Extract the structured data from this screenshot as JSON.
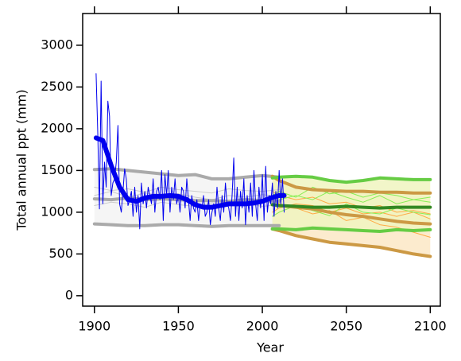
{
  "chart_data": {
    "type": "line",
    "xlabel": "Year",
    "ylabel": "Total annual ppt (mm)",
    "xlim": [
      1893,
      2106
    ],
    "ylim": [
      -125,
      3380
    ],
    "xticks": [
      1900,
      1950,
      2000,
      2050,
      2100
    ],
    "yticks": [
      0,
      500,
      1000,
      1500,
      2000,
      2500,
      3000
    ],
    "ensembles": [
      {
        "color": "#aaaaaa",
        "member_color": "#cccccc",
        "fill": "#f3f3f3",
        "x": [
          1900,
          1910,
          1920,
          1930,
          1940,
          1950,
          1960,
          1970,
          1980,
          1990,
          2000,
          2010
        ],
        "upper": [
          1510,
          1520,
          1500,
          1480,
          1460,
          1440,
          1450,
          1400,
          1400,
          1420,
          1440,
          1420
        ],
        "median": [
          1160,
          1150,
          1170,
          1150,
          1160,
          1150,
          1140,
          1140,
          1130,
          1150,
          1140,
          1130
        ],
        "lower": [
          860,
          850,
          840,
          840,
          850,
          850,
          840,
          830,
          840,
          840,
          840,
          840
        ],
        "members": [
          [
            1200,
            1250,
            1180,
            1230,
            1200,
            1220,
            1180,
            1150,
            1200,
            1180,
            1210,
            1190
          ],
          [
            1080,
            1120,
            1100,
            1060,
            1120,
            1090,
            1070,
            1110,
            1080,
            1100,
            1070,
            1090
          ],
          [
            1300,
            1260,
            1280,
            1240,
            1300,
            1270,
            1250,
            1230,
            1280,
            1260,
            1250,
            1270
          ]
        ]
      },
      {
        "color": "#cc9944",
        "member_color": "#ffaa44",
        "fill": "#fbe8c6",
        "x": [
          2006,
          2010,
          2020,
          2030,
          2040,
          2050,
          2060,
          2070,
          2080,
          2090,
          2100
        ],
        "upper": [
          1430,
          1380,
          1300,
          1270,
          1260,
          1250,
          1250,
          1240,
          1240,
          1230,
          1230
        ],
        "median": [
          1090,
          1080,
          1060,
          1040,
          1000,
          970,
          950,
          920,
          890,
          870,
          860
        ],
        "lower": [
          800,
          780,
          720,
          680,
          640,
          620,
          600,
          580,
          540,
          500,
          470
        ],
        "members": [
          [
            1150,
            1100,
            1050,
            980,
            1020,
            900,
            940,
            850,
            820,
            760,
            700
          ],
          [
            1000,
            1050,
            1100,
            1080,
            1000,
            1050,
            980,
            1000,
            950,
            1000,
            920
          ],
          [
            1250,
            1200,
            1150,
            1180,
            1100,
            1120,
            1050,
            1080,
            1000,
            1020,
            980
          ]
        ]
      },
      {
        "color": "#66cc44",
        "member_color": "#88ee55",
        "fill": "#f0f5c0",
        "x": [
          2006,
          2010,
          2020,
          2030,
          2040,
          2050,
          2060,
          2070,
          2080,
          2090,
          2100
        ],
        "upper": [
          1410,
          1420,
          1430,
          1420,
          1380,
          1360,
          1380,
          1410,
          1400,
          1390,
          1390
        ],
        "median": [
          1090,
          1080,
          1070,
          1060,
          1060,
          1070,
          1060,
          1050,
          1060,
          1060,
          1060
        ],
        "median_color": "#338822",
        "lower": [
          800,
          800,
          790,
          810,
          800,
          790,
          780,
          770,
          790,
          780,
          790
        ],
        "members": [
          [
            1200,
            1250,
            1180,
            1300,
            1220,
            1250,
            1180,
            1230,
            1200,
            1150,
            1180
          ],
          [
            950,
            1000,
            1080,
            1020,
            960,
            1100,
            1000,
            980,
            1050,
            1000,
            970
          ],
          [
            1100,
            1150,
            1200,
            1150,
            1250,
            1180,
            1120,
            1200,
            1100,
            1150,
            1120
          ]
        ]
      }
    ],
    "observed": {
      "color": "#0000ee",
      "x": [
        1901,
        1902,
        1903,
        1904,
        1905,
        1906,
        1907,
        1908,
        1909,
        1910,
        1911,
        1912,
        1913,
        1914,
        1915,
        1916,
        1917,
        1918,
        1919,
        1920,
        1921,
        1922,
        1923,
        1924,
        1925,
        1926,
        1927,
        1928,
        1929,
        1930,
        1931,
        1932,
        1933,
        1934,
        1935,
        1936,
        1937,
        1938,
        1939,
        1940,
        1941,
        1942,
        1943,
        1944,
        1945,
        1946,
        1947,
        1948,
        1949,
        1950,
        1951,
        1952,
        1953,
        1954,
        1955,
        1956,
        1957,
        1958,
        1959,
        1960,
        1961,
        1962,
        1963,
        1964,
        1965,
        1966,
        1967,
        1968,
        1969,
        1970,
        1971,
        1972,
        1973,
        1974,
        1975,
        1976,
        1977,
        1978,
        1979,
        1980,
        1981,
        1982,
        1983,
        1984,
        1985,
        1986,
        1987,
        1988,
        1989,
        1990,
        1991,
        1992,
        1993,
        1994,
        1995,
        1996,
        1997,
        1998,
        1999,
        2000,
        2001,
        2002,
        2003,
        2004,
        2005,
        2006,
        2007,
        2008,
        2009,
        2010,
        2011,
        2012,
        2013
      ],
      "values": [
        2660,
        1950,
        1040,
        2570,
        1100,
        1600,
        1300,
        2330,
        2150,
        1200,
        1350,
        1400,
        1600,
        2040,
        1100,
        1000,
        1250,
        1520,
        1400,
        1080,
        1150,
        1250,
        950,
        1300,
        1000,
        1200,
        800,
        1350,
        1100,
        1250,
        1050,
        1300,
        1200,
        1100,
        1400,
        1000,
        1250,
        1300,
        1150,
        1500,
        900,
        1450,
        1200,
        1500,
        1000,
        1300,
        1150,
        1400,
        1100,
        1200,
        1000,
        1300,
        1250,
        1050,
        1400,
        1150,
        900,
        1200,
        1050,
        1000,
        1150,
        900,
        1100,
        1050,
        1200,
        950,
        1000,
        1150,
        850,
        1000,
        1100,
        950,
        1300,
        1050,
        900,
        1200,
        1000,
        1350,
        1100,
        1050,
        900,
        1200,
        1650,
        950,
        1300,
        900,
        1250,
        1050,
        1400,
        850,
        1200,
        1000,
        1350,
        950,
        1500,
        1100,
        900,
        1300,
        1050,
        1450,
        900,
        1550,
        1000,
        1200,
        1100,
        1350,
        950,
        1250,
        1050,
        1500,
        1100,
        1400,
        1000
      ],
      "smooth_x": [
        1901,
        1905,
        1910,
        1915,
        1920,
        1925,
        1930,
        1935,
        1940,
        1945,
        1950,
        1955,
        1960,
        1965,
        1970,
        1975,
        1980,
        1985,
        1990,
        1995,
        2000,
        2005,
        2010,
        2013
      ],
      "smooth": [
        1890,
        1860,
        1560,
        1300,
        1150,
        1130,
        1170,
        1190,
        1190,
        1200,
        1190,
        1150,
        1090,
        1060,
        1060,
        1080,
        1100,
        1100,
        1100,
        1110,
        1130,
        1170,
        1200,
        1200
      ]
    }
  }
}
